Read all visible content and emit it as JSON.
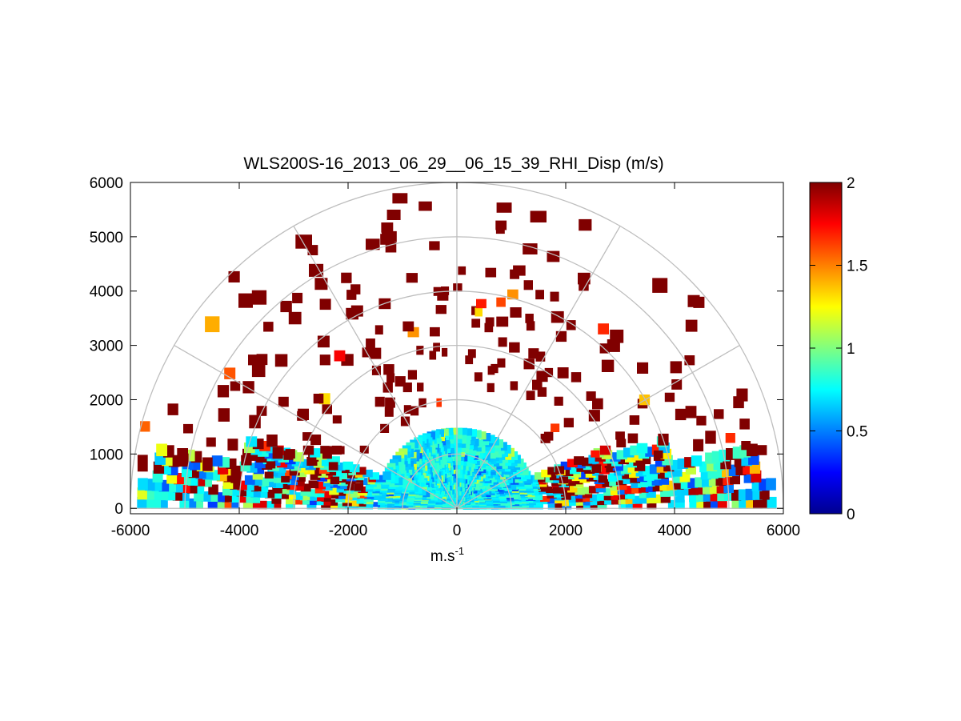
{
  "chart_data": {
    "type": "heatmap",
    "title": "WLS200S-16_2013_06_29__06_15_39_RHI_Disp (m/s)",
    "xlabel": "m.s",
    "xlabel_sup": "-1",
    "ylabel": "",
    "xlim": [
      -6000,
      6000
    ],
    "ylim": [
      -100,
      6000
    ],
    "x_ticks": [
      "-6000",
      "-4000",
      "-2000",
      "0",
      "2000",
      "4000",
      "6000"
    ],
    "y_ticks": [
      "0",
      "1000",
      "2000",
      "3000",
      "4000",
      "5000",
      "6000"
    ],
    "polar_grid": {
      "range_rings": [
        1000,
        2000,
        3000,
        4000,
        5000,
        6000
      ],
      "spoke_angles_deg": [
        0,
        30,
        60,
        90,
        120,
        150,
        180
      ]
    },
    "colorbar": {
      "min": 0,
      "max": 2,
      "ticks": [
        "0",
        "0.5",
        "1",
        "1.5",
        "2"
      ],
      "colormap": "jet"
    },
    "regions": {
      "dense_scan_max_range_m": 6000,
      "dense_scan_elevations_deg": [
        0,
        22
      ],
      "near_field_range_m": 1600,
      "typical_value_near_field": 0.7,
      "high_value_far_bands": 2.0
    }
  }
}
